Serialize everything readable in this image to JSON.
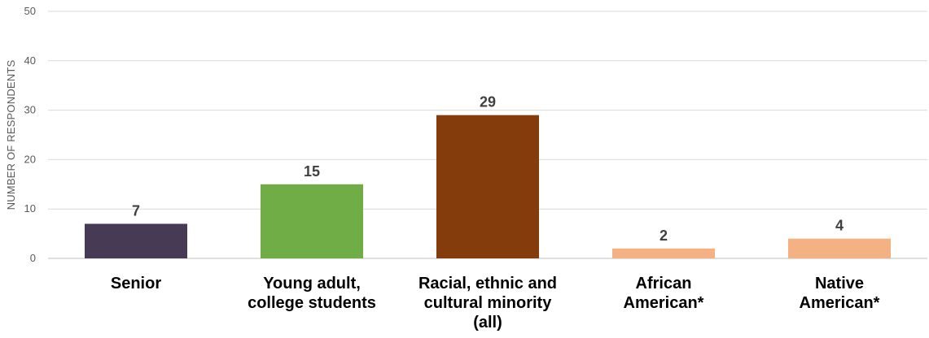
{
  "chart_data": {
    "type": "bar",
    "title": "",
    "xlabel": "",
    "ylabel": "NUMBER OF RESPONDENTS",
    "ylim": [
      0,
      50
    ],
    "yticks": [
      0,
      10,
      20,
      30,
      40,
      50
    ],
    "grid": true,
    "legend": "none",
    "categories": [
      [
        "Senior"
      ],
      [
        "Young adult,",
        "college students"
      ],
      [
        "Racial, ethnic and",
        "cultural minority",
        "(all)"
      ],
      [
        "African",
        "American*"
      ],
      [
        "Native",
        "American*"
      ]
    ],
    "values": [
      7,
      15,
      29,
      2,
      4
    ],
    "colors": [
      "#463a55",
      "#70ad47",
      "#843c0c",
      "#f4b183",
      "#f4b183"
    ]
  }
}
